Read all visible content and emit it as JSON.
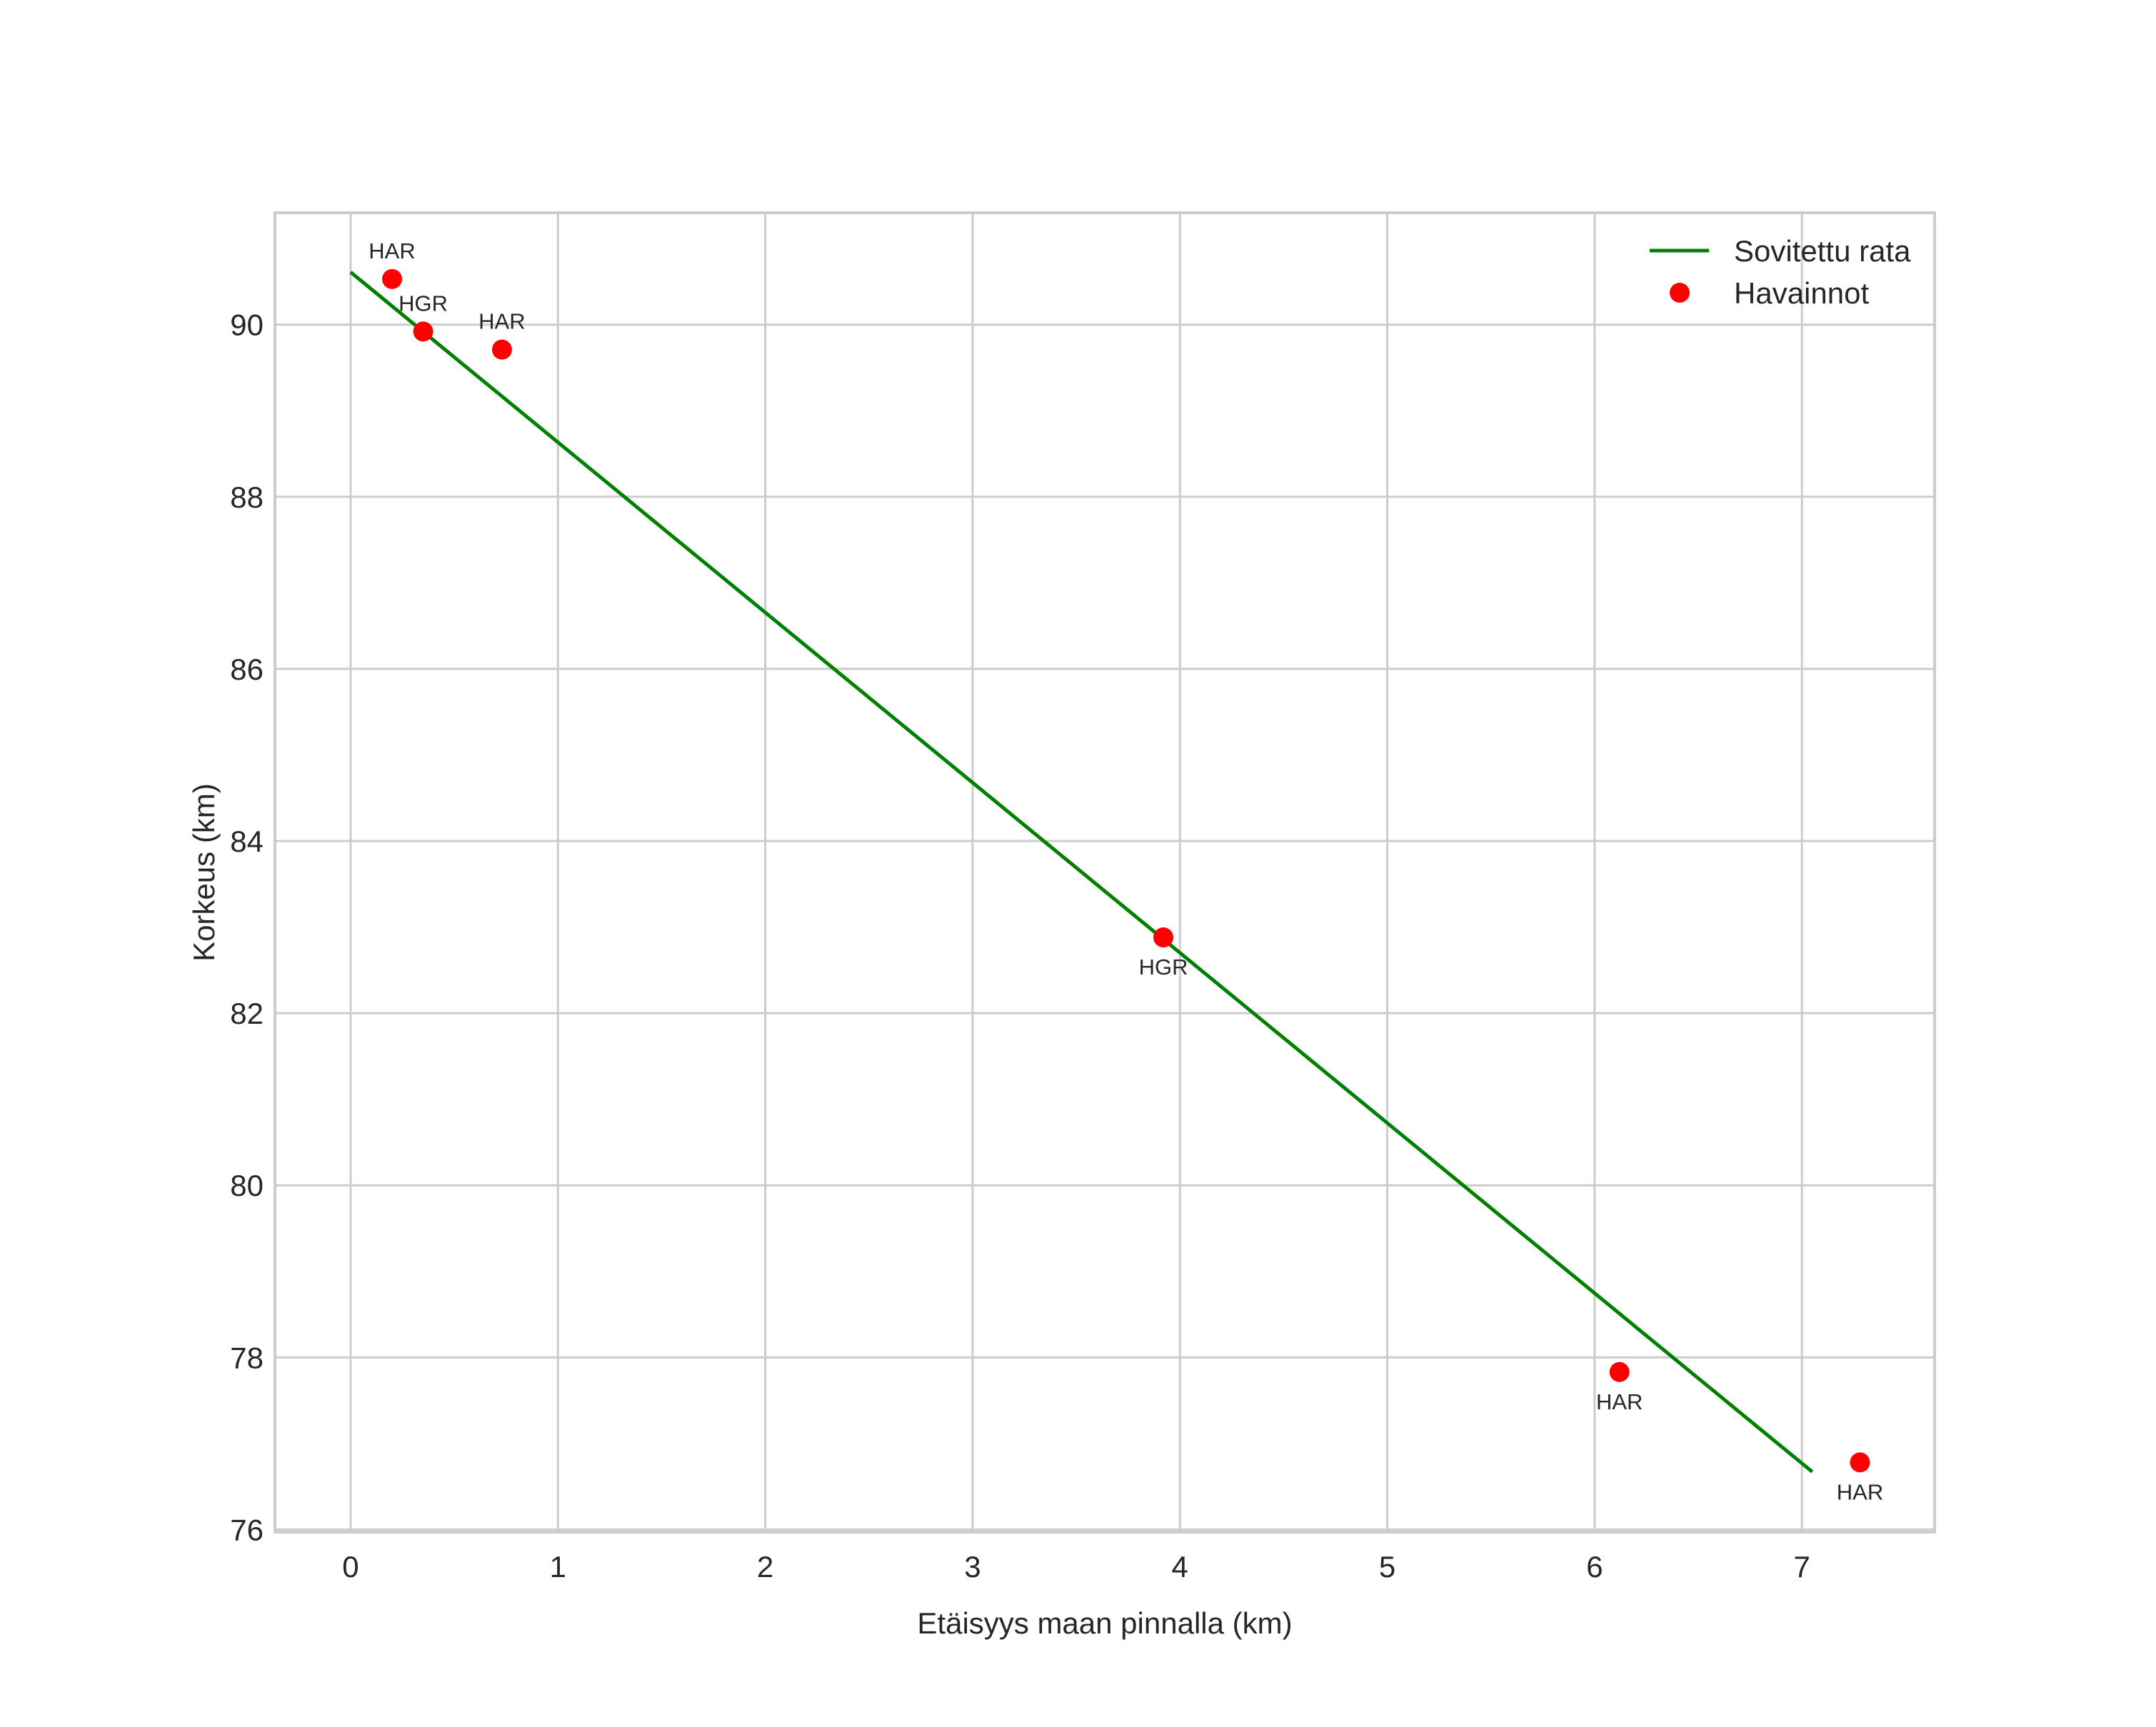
{
  "chart_data": {
    "type": "scatter",
    "title": "",
    "xlabel": "Etäisyys maan pinnalla (km)",
    "ylabel": "Korkeus (km)",
    "xlim": [
      -0.365,
      7.64
    ],
    "ylim": [
      75.97,
      91.3
    ],
    "xticks": [
      0,
      1,
      2,
      3,
      4,
      5,
      6,
      7
    ],
    "yticks": [
      76,
      78,
      80,
      82,
      84,
      86,
      88,
      90
    ],
    "grid": true,
    "legend_position": "upper right",
    "series": [
      {
        "name": "Sovitettu rata",
        "kind": "line",
        "color": "#008000",
        "x": [
          0.0,
          7.05
        ],
        "y": [
          90.61,
          76.67
        ]
      },
      {
        "name": "Havainnot",
        "kind": "scatter",
        "color": "#ff0000",
        "x": [
          0.2,
          0.35,
          0.73,
          3.92,
          6.12,
          7.28
        ],
        "y": [
          90.53,
          89.92,
          89.71,
          82.88,
          77.83,
          76.78
        ],
        "labels": [
          "HAR",
          "HGR",
          "HAR",
          "HGR",
          "HAR",
          "HAR"
        ],
        "label_positions": [
          "above",
          "above",
          "above",
          "below",
          "below",
          "below"
        ]
      }
    ]
  },
  "legend": {
    "items": [
      {
        "label": "Sovitettu rata",
        "symbol": "line",
        "color": "#008000"
      },
      {
        "label": "Havainnot",
        "symbol": "dot",
        "color": "#ff0000"
      }
    ]
  },
  "style": {
    "grid_color": "#cccccc",
    "spine_color": "#cccccc",
    "text_color": "#262626",
    "background": "#ffffff"
  }
}
